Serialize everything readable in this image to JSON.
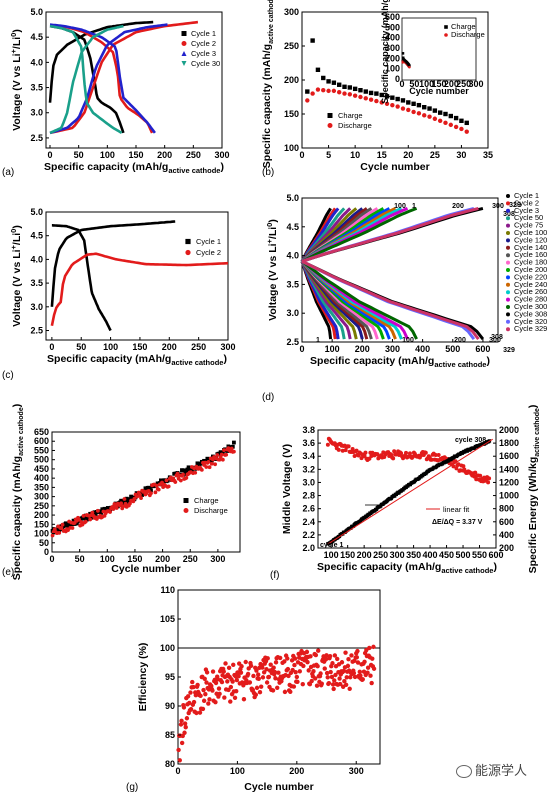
{
  "watermark": "能源学人",
  "chart_data": [
    {
      "panel": "(a)",
      "type": "line",
      "ylabel": "Voltage (V vs Li+/Li0)",
      "xlabel": "Specific capacity (mAh/gactive cathode)",
      "xlim": [
        0,
        300
      ],
      "ylim": [
        2.3,
        5.0
      ],
      "xticks": [
        "0",
        "50",
        "100",
        "150",
        "200",
        "250",
        "300"
      ],
      "yticks": [
        "2.5",
        "3.0",
        "3.5",
        "4.0",
        "4.5",
        "5.0"
      ],
      "legend": "top-right",
      "series": [
        {
          "name": "Cycle 1",
          "color": "#000000",
          "marker": "■",
          "charge": [
            [
              0,
              3.2
            ],
            [
              5,
              3.9
            ],
            [
              12,
              4.15
            ],
            [
              30,
              4.35
            ],
            [
              60,
              4.55
            ],
            [
              100,
              4.7
            ],
            [
              150,
              4.78
            ],
            [
              180,
              4.8
            ]
          ],
          "discharge": [
            [
              0,
              4.72
            ],
            [
              20,
              4.68
            ],
            [
              40,
              4.6
            ],
            [
              60,
              4.45
            ],
            [
              70,
              4.1
            ],
            [
              78,
              3.6
            ],
            [
              82,
              3.3
            ],
            [
              90,
              3.2
            ],
            [
              105,
              3.1
            ],
            [
              115,
              3.0
            ],
            [
              122,
              2.8
            ],
            [
              128,
              2.6
            ]
          ]
        },
        {
          "name": "Cycle 2",
          "color": "#e21b1b",
          "marker": "●",
          "charge": [
            [
              0,
              2.6
            ],
            [
              40,
              2.7
            ],
            [
              60,
              3.0
            ],
            [
              75,
              3.5
            ],
            [
              90,
              4.0
            ],
            [
              110,
              4.35
            ],
            [
              150,
              4.6
            ],
            [
              200,
              4.72
            ],
            [
              258,
              4.8
            ]
          ],
          "discharge": [
            [
              0,
              4.72
            ],
            [
              30,
              4.7
            ],
            [
              60,
              4.6
            ],
            [
              90,
              4.4
            ],
            [
              110,
              4.2
            ],
            [
              118,
              3.8
            ],
            [
              122,
              3.3
            ],
            [
              135,
              3.1
            ],
            [
              155,
              2.95
            ],
            [
              170,
              2.8
            ],
            [
              178,
              2.6
            ]
          ]
        },
        {
          "name": "Cycle 3",
          "color": "#2222cc",
          "marker": "▲",
          "charge": [
            [
              0,
              2.6
            ],
            [
              30,
              2.7
            ],
            [
              50,
              2.9
            ],
            [
              65,
              3.3
            ],
            [
              80,
              3.9
            ],
            [
              100,
              4.35
            ],
            [
              130,
              4.6
            ],
            [
              170,
              4.7
            ],
            [
              205,
              4.75
            ]
          ],
          "discharge": [
            [
              0,
              4.75
            ],
            [
              25,
              4.72
            ],
            [
              55,
              4.65
            ],
            [
              90,
              4.5
            ],
            [
              115,
              4.3
            ],
            [
              122,
              3.7
            ],
            [
              128,
              3.3
            ],
            [
              150,
              3.05
            ],
            [
              170,
              2.8
            ],
            [
              183,
              2.6
            ]
          ]
        },
        {
          "name": "Cycle 30",
          "color": "#1aa08a",
          "marker": "▼",
          "charge": [
            [
              0,
              2.6
            ],
            [
              20,
              2.7
            ],
            [
              30,
              3.0
            ],
            [
              40,
              3.6
            ],
            [
              55,
              4.2
            ],
            [
              75,
              4.5
            ],
            [
              100,
              4.65
            ],
            [
              128,
              4.72
            ]
          ],
          "discharge": [
            [
              0,
              4.72
            ],
            [
              20,
              4.68
            ],
            [
              40,
              4.6
            ],
            [
              55,
              4.3
            ],
            [
              60,
              3.6
            ],
            [
              64,
              3.2
            ],
            [
              75,
              3.0
            ],
            [
              92,
              2.85
            ],
            [
              110,
              2.7
            ],
            [
              125,
              2.6
            ]
          ]
        }
      ]
    },
    {
      "panel": "(b)",
      "type": "scatter",
      "ylabel": "Specific capacity (mAh/gactive cathode)",
      "xlabel": "Cycle number",
      "xlim": [
        0,
        35
      ],
      "ylim": [
        100,
        300
      ],
      "xticks": [
        "0",
        "5",
        "10",
        "15",
        "20",
        "25",
        "30",
        "35"
      ],
      "yticks": [
        "100",
        "150",
        "200",
        "250",
        "300"
      ],
      "legend": "bottom-left",
      "series": [
        {
          "name": "Charge",
          "color": "#000000",
          "marker": "■",
          "x": [
            1,
            2,
            3,
            4,
            5,
            6,
            7,
            8,
            9,
            10,
            11,
            12,
            13,
            14,
            15,
            16,
            17,
            18,
            19,
            20,
            21,
            22,
            23,
            24,
            25,
            26,
            27,
            28,
            29,
            30,
            31
          ],
          "values": [
            183,
            258,
            215,
            203,
            198,
            196,
            193,
            190,
            189,
            187,
            185,
            183,
            181,
            180,
            178,
            176,
            174,
            172,
            170,
            167,
            165,
            163,
            160,
            158,
            155,
            152,
            150,
            147,
            144,
            140,
            137
          ]
        },
        {
          "name": "Discharge",
          "color": "#e21b1b",
          "marker": "●",
          "x": [
            1,
            2,
            3,
            4,
            5,
            6,
            7,
            8,
            9,
            10,
            11,
            12,
            13,
            14,
            15,
            16,
            17,
            18,
            19,
            20,
            21,
            22,
            23,
            24,
            25,
            26,
            27,
            28,
            29,
            30,
            31
          ],
          "values": [
            170,
            180,
            186,
            185,
            184,
            184,
            182,
            180,
            179,
            177,
            175,
            173,
            171,
            169,
            167,
            165,
            163,
            161,
            158,
            156,
            153,
            151,
            148,
            146,
            143,
            140,
            137,
            134,
            131,
            128,
            124
          ]
        }
      ],
      "inset": {
        "xlabel": "Cycle number",
        "ylabel": "Specific capacity (mAh/g)",
        "xticks": [
          "0",
          "50",
          "100",
          "150",
          "200",
          "250",
          "300"
        ],
        "yticks": [
          "0",
          "100",
          "200",
          "300",
          "400",
          "500",
          "600"
        ],
        "legend": [
          "Charge",
          "Discharge"
        ]
      }
    },
    {
      "panel": "(c)",
      "type": "line",
      "ylabel": "Voltage (V vs Li+/Li0)",
      "xlabel": "Specific capacity (mAh/gactive cathode)",
      "xlim": [
        -10,
        300
      ],
      "ylim": [
        2.3,
        5.0
      ],
      "xticks": [
        "0",
        "50",
        "100",
        "150",
        "200",
        "250",
        "300"
      ],
      "yticks": [
        "2.5",
        "3.0",
        "3.5",
        "4.0",
        "4.5",
        "5.0"
      ],
      "legend": "top-right",
      "series": [
        {
          "name": "Cycle 1",
          "color": "#000000",
          "marker": "■",
          "charge": [
            [
              0,
              3.0
            ],
            [
              5,
              3.8
            ],
            [
              12,
              4.2
            ],
            [
              25,
              4.45
            ],
            [
              50,
              4.62
            ],
            [
              100,
              4.7
            ],
            [
              160,
              4.75
            ],
            [
              210,
              4.8
            ]
          ],
          "discharge": [
            [
              0,
              4.72
            ],
            [
              25,
              4.7
            ],
            [
              45,
              4.62
            ],
            [
              55,
              4.4
            ],
            [
              62,
              3.8
            ],
            [
              68,
              3.3
            ],
            [
              80,
              2.95
            ],
            [
              92,
              2.7
            ],
            [
              100,
              2.5
            ]
          ]
        },
        {
          "name": "Cycle 2",
          "color": "#e21b1b",
          "marker": "●",
          "charge": [
            [
              0,
              2.6
            ],
            [
              3,
              2.8
            ],
            [
              8,
              3.0
            ],
            [
              15,
              3.1
            ],
            [
              20,
              3.6
            ],
            [
              35,
              3.9
            ],
            [
              60,
              4.1
            ],
            [
              75,
              4.12
            ],
            [
              110,
              4.0
            ],
            [
              160,
              3.9
            ],
            [
              230,
              3.88
            ],
            [
              300,
              3.92
            ]
          ]
        }
      ]
    },
    {
      "panel": "(d)",
      "type": "line",
      "ylabel": "Voltage (V vs Li+/Li0)",
      "xlabel": "Specific capacity (mAh/gactive cathode)",
      "xlim": [
        0,
        650
      ],
      "ylim": [
        2.5,
        5.0
      ],
      "xticks": [
        "0",
        "100",
        "200",
        "300",
        "400",
        "500",
        "600"
      ],
      "yticks": [
        "2.5",
        "3.0",
        "3.5",
        "4.0",
        "4.5",
        "5.0"
      ],
      "annotations": [
        "100",
        "1",
        "200",
        "300",
        "329",
        "308",
        "1",
        "100",
        "200",
        "300",
        "329",
        "308"
      ],
      "legend": "right",
      "legend_entries": [
        "Cycle 1",
        "Cycle 2",
        "Cycle 3",
        "Cycle 50",
        "Cycle 75",
        "Cycle 100",
        "Cycle 120",
        "Cycle 140",
        "Cycle 160",
        "Cycle 180",
        "Cycle 200",
        "Cycle 220",
        "Cycle 240",
        "Cycle 260",
        "Cycle 280",
        "Cycle 300",
        "Cycle 308",
        "Cycle 320",
        "Cycle 329"
      ],
      "legend_colors": [
        "#000000",
        "#e21b1b",
        "#2222cc",
        "#1aa08a",
        "#8b1a8b",
        "#7a7a00",
        "#1a1a8b",
        "#8b1a1a",
        "#555555",
        "#ff66cc",
        "#00aa00",
        "#0044ff",
        "#cc6600",
        "#00cccc",
        "#cc00cc",
        "#006600",
        "#000000",
        "#6666ff",
        "#cc3366"
      ],
      "capacities": [
        95,
        110,
        120,
        140,
        160,
        180,
        200,
        215,
        230,
        250,
        270,
        290,
        310,
        330,
        350,
        380,
        600,
        570,
        585
      ]
    },
    {
      "panel": "(e)",
      "type": "scatter",
      "ylabel": "Specific capacity (mAh/gactive cathode)",
      "xlabel": "Cycle number",
      "xlim": [
        0,
        340
      ],
      "ylim": [
        0,
        650
      ],
      "xticks": [
        "0",
        "50",
        "100",
        "150",
        "200",
        "250",
        "300"
      ],
      "yticks": [
        "0",
        "50",
        "100",
        "150",
        "200",
        "250",
        "300",
        "350",
        "400",
        "450",
        "500",
        "550",
        "600",
        "650"
      ],
      "legend": "bottom-right",
      "series": [
        {
          "name": "Charge",
          "color": "#000000",
          "marker": "■",
          "trend": [
            [
              1,
              110
            ],
            [
              50,
              175
            ],
            [
              100,
              230
            ],
            [
              150,
              300
            ],
            [
              200,
              380
            ],
            [
              250,
              450
            ],
            [
              300,
              520
            ],
            [
              330,
              590
            ]
          ]
        },
        {
          "name": "Discharge",
          "color": "#e21b1b",
          "marker": "●",
          "trend": [
            [
              1,
              105
            ],
            [
              50,
              165
            ],
            [
              100,
              220
            ],
            [
              150,
              290
            ],
            [
              200,
              365
            ],
            [
              250,
              435
            ],
            [
              300,
              505
            ],
            [
              330,
              570
            ]
          ]
        }
      ]
    },
    {
      "panel": "(f)",
      "type": "scatter",
      "ylabel": "Middle Voltage (V)",
      "ylabel_right": "Specific Energy (Wh/kgactive cathode)",
      "xlabel": "Specific capacity (mAh/gactive cathode)",
      "xlim": [
        60,
        600
      ],
      "ylim": [
        2.0,
        3.8
      ],
      "ylim_right": [
        200,
        2000
      ],
      "xticks": [
        "100",
        "150",
        "200",
        "250",
        "300",
        "350",
        "400",
        "450",
        "500",
        "550",
        "600"
      ],
      "yticks": [
        "2.0",
        "2.2",
        "2.4",
        "2.6",
        "2.8",
        "3.0",
        "3.2",
        "3.4",
        "3.6",
        "3.8"
      ],
      "yticks_right": [
        "200",
        "400",
        "600",
        "800",
        "1000",
        "1200",
        "1400",
        "1600",
        "1800",
        "2000"
      ],
      "annotations": [
        "cycle 308",
        "cycle 1",
        "linear fit",
        "ΔE/ΔQ = 3.37 V"
      ],
      "series": [
        {
          "name": "Middle Voltage",
          "color": "#e21b1b",
          "marker": "●",
          "trend": [
            [
              90,
              3.62
            ],
            [
              200,
              3.4
            ],
            [
              300,
              3.42
            ],
            [
              400,
              3.4
            ],
            [
              450,
              3.35
            ],
            [
              500,
              3.2
            ],
            [
              560,
              3.05
            ]
          ]
        },
        {
          "name": "Specific Energy",
          "color": "#000000",
          "marker": "■",
          "trend": [
            [
              90,
              260
            ],
            [
              200,
              660
            ],
            [
              300,
              1030
            ],
            [
              400,
              1390
            ],
            [
              500,
              1660
            ],
            [
              580,
              1830
            ]
          ]
        }
      ]
    },
    {
      "panel": "(g)",
      "type": "scatter",
      "ylabel": "Efficiency (%)",
      "xlabel": "Cycle number",
      "xlim": [
        0,
        340
      ],
      "ylim": [
        80,
        110
      ],
      "xticks": [
        "0",
        "100",
        "200",
        "300"
      ],
      "yticks": [
        "80",
        "85",
        "90",
        "95",
        "100",
        "105",
        "110"
      ],
      "reference_line": 100,
      "series": [
        {
          "name": "Efficiency",
          "color": "#e21b1b",
          "marker": "●",
          "trend": [
            [
              1,
              80
            ],
            [
              5,
              86
            ],
            [
              20,
              91
            ],
            [
              50,
              93
            ],
            [
              100,
              94.5
            ],
            [
              200,
              96
            ],
            [
              300,
              96.5
            ],
            [
              330,
              97
            ]
          ]
        }
      ]
    }
  ]
}
